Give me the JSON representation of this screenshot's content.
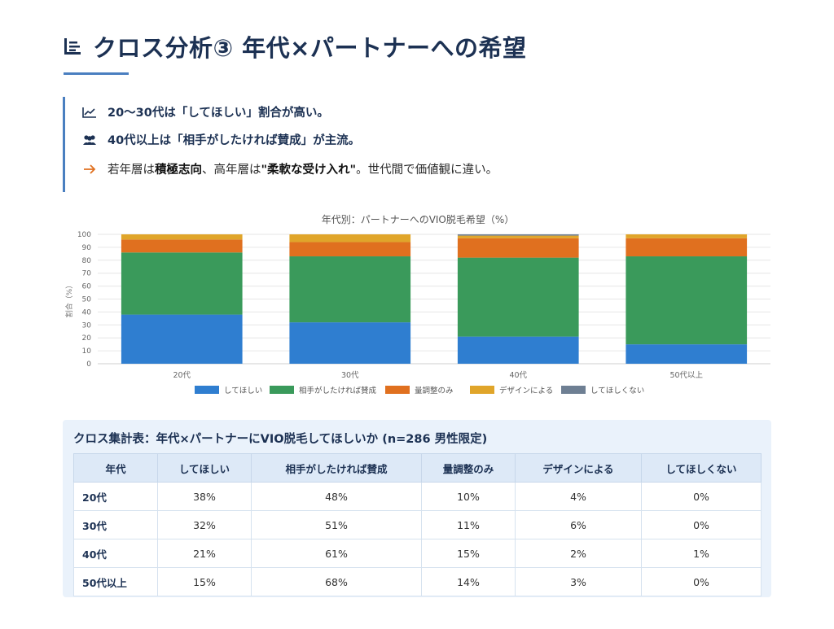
{
  "page": {
    "title": "クロス分析③ 年代×パートナーへの希望"
  },
  "callout": {
    "line1": "20〜30代は「してほしい」割合が高い。",
    "line2": "40代以上は「相手がしたければ賛成」が主流。",
    "line3_a": "若年層は",
    "line3_b": "積極志向",
    "line3_c": "、高年層は",
    "line3_d": "\"柔軟な受け入れ\"",
    "line3_e": "。世代間で価値観に違い。",
    "icon_color": "#1c3153",
    "arrow_color": "#e07020"
  },
  "chart_data": {
    "type": "bar",
    "stacked": true,
    "title": "年代別：パートナーへのVIO脱毛希望（%）",
    "xlabel": "",
    "ylabel": "割合（%）",
    "ylim": [
      0,
      100
    ],
    "yticks": [
      0,
      10,
      20,
      30,
      40,
      50,
      60,
      70,
      80,
      90,
      100
    ],
    "grid": true,
    "legend_position": "bottom",
    "categories": [
      "20代",
      "30代",
      "40代",
      "50代以上"
    ],
    "series": [
      {
        "name": "してほしい",
        "color": "#2f7ed0",
        "values": [
          38,
          32,
          21,
          15
        ]
      },
      {
        "name": "相手がしたければ賛成",
        "color": "#3a9a5b",
        "values": [
          48,
          51,
          61,
          68
        ]
      },
      {
        "name": "量調整のみ",
        "color": "#e0701f",
        "values": [
          10,
          11,
          15,
          14
        ]
      },
      {
        "name": "デザインによる",
        "color": "#e0a52a",
        "values": [
          4,
          6,
          2,
          3
        ]
      },
      {
        "name": "してほしくない",
        "color": "#6e7f93",
        "values": [
          0,
          0,
          1,
          0
        ]
      }
    ]
  },
  "table": {
    "title": "クロス集計表：年代×パートナーにVIO脱毛してほしいか (n=286 男性限定)",
    "headers": [
      "年代",
      "してほしい",
      "相手がしたければ賛成",
      "量調整のみ",
      "デザインによる",
      "してほしくない"
    ],
    "rows": [
      [
        "20代",
        "38%",
        "48%",
        "10%",
        "4%",
        "0%"
      ],
      [
        "30代",
        "32%",
        "51%",
        "11%",
        "6%",
        "0%"
      ],
      [
        "40代",
        "21%",
        "61%",
        "15%",
        "2%",
        "1%"
      ],
      [
        "50代以上",
        "15%",
        "68%",
        "14%",
        "3%",
        "0%"
      ]
    ]
  }
}
